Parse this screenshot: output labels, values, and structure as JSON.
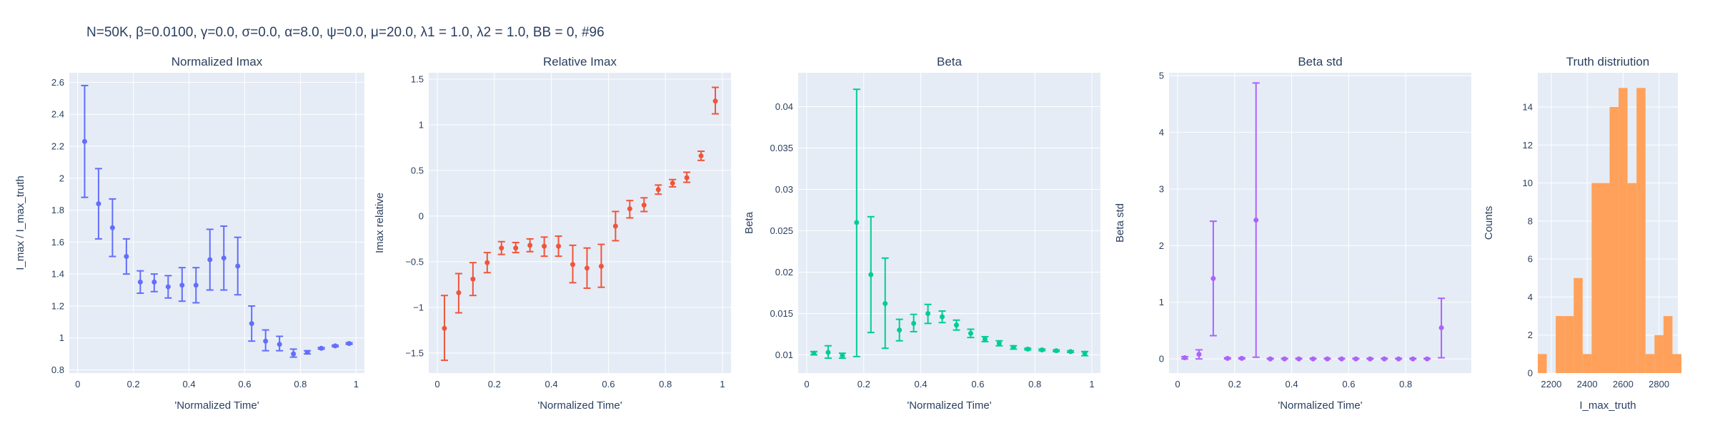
{
  "suptitle": "N=50K, β=0.0100, γ=0.0, σ=0.0,  α=8.0, ψ=0.0, μ=20.0, λ1 = 1.0, λ2 = 1.0, BB = 0, #96",
  "colors": {
    "plot_bg": "#e5ecf6",
    "grid": "#ffffff",
    "text": "#2a3f5f"
  },
  "chart_data": [
    {
      "type": "scatter",
      "title": "Normalized Imax",
      "xlabel": "'Normalized Time'",
      "ylabel": "I_max / I_max_truth",
      "color": "#636efa",
      "xlim": [
        -0.03,
        1.03
      ],
      "ylim": [
        0.78,
        2.66
      ],
      "xticks": [
        0,
        0.2,
        0.4,
        0.6,
        0.8,
        1
      ],
      "xtick_labels": [
        "0",
        "0.2",
        "0.4",
        "0.6",
        "0.8",
        "1"
      ],
      "yticks": [
        0.8,
        1,
        1.2,
        1.4,
        1.6,
        1.8,
        2,
        2.2,
        2.4,
        2.6
      ],
      "ytick_labels": [
        "0.8",
        "1",
        "1.2",
        "1.4",
        "1.6",
        "1.8",
        "2",
        "2.2",
        "2.4",
        "2.6"
      ],
      "points": [
        {
          "x": 0.025,
          "y": 2.23,
          "lo": 1.88,
          "hi": 2.58
        },
        {
          "x": 0.075,
          "y": 1.84,
          "lo": 1.62,
          "hi": 2.06
        },
        {
          "x": 0.125,
          "y": 1.69,
          "lo": 1.51,
          "hi": 1.87
        },
        {
          "x": 0.175,
          "y": 1.51,
          "lo": 1.4,
          "hi": 1.62
        },
        {
          "x": 0.225,
          "y": 1.35,
          "lo": 1.28,
          "hi": 1.42
        },
        {
          "x": 0.275,
          "y": 1.35,
          "lo": 1.29,
          "hi": 1.4
        },
        {
          "x": 0.325,
          "y": 1.32,
          "lo": 1.25,
          "hi": 1.39
        },
        {
          "x": 0.375,
          "y": 1.33,
          "lo": 1.23,
          "hi": 1.44
        },
        {
          "x": 0.425,
          "y": 1.33,
          "lo": 1.22,
          "hi": 1.44
        },
        {
          "x": 0.475,
          "y": 1.49,
          "lo": 1.3,
          "hi": 1.68
        },
        {
          "x": 0.525,
          "y": 1.5,
          "lo": 1.3,
          "hi": 1.7
        },
        {
          "x": 0.575,
          "y": 1.45,
          "lo": 1.27,
          "hi": 1.63
        },
        {
          "x": 0.625,
          "y": 1.09,
          "lo": 0.98,
          "hi": 1.2
        },
        {
          "x": 0.675,
          "y": 0.98,
          "lo": 0.92,
          "hi": 1.05
        },
        {
          "x": 0.725,
          "y": 0.96,
          "lo": 0.92,
          "hi": 1.01
        },
        {
          "x": 0.775,
          "y": 0.9,
          "lo": 0.88,
          "hi": 0.93
        },
        {
          "x": 0.825,
          "y": 0.91,
          "lo": 0.9,
          "hi": 0.92
        },
        {
          "x": 0.875,
          "y": 0.935,
          "lo": 0.93,
          "hi": 0.94
        },
        {
          "x": 0.925,
          "y": 0.95,
          "lo": 0.945,
          "hi": 0.955
        },
        {
          "x": 0.975,
          "y": 0.965,
          "lo": 0.96,
          "hi": 0.97
        }
      ]
    },
    {
      "type": "scatter",
      "title": "Relative Imax",
      "xlabel": "'Normalized Time'",
      "ylabel": "Imax relative",
      "color": "#ef553b",
      "xlim": [
        -0.03,
        1.03
      ],
      "ylim": [
        -1.72,
        1.57
      ],
      "xticks": [
        0,
        0.2,
        0.4,
        0.6,
        0.8,
        1
      ],
      "xtick_labels": [
        "0",
        "0.2",
        "0.4",
        "0.6",
        "0.8",
        "1"
      ],
      "yticks": [
        -1.5,
        -1,
        -0.5,
        0,
        0.5,
        1,
        1.5
      ],
      "ytick_labels": [
        "−1.5",
        "−1",
        "−0.5",
        "0",
        "0.5",
        "1",
        "1.5"
      ],
      "points": [
        {
          "x": 0.025,
          "y": -1.23,
          "lo": -1.58,
          "hi": -0.87
        },
        {
          "x": 0.075,
          "y": -0.84,
          "lo": -1.06,
          "hi": -0.63
        },
        {
          "x": 0.125,
          "y": -0.69,
          "lo": -0.87,
          "hi": -0.51
        },
        {
          "x": 0.175,
          "y": -0.51,
          "lo": -0.62,
          "hi": -0.4
        },
        {
          "x": 0.225,
          "y": -0.35,
          "lo": -0.42,
          "hi": -0.28
        },
        {
          "x": 0.275,
          "y": -0.35,
          "lo": -0.4,
          "hi": -0.29
        },
        {
          "x": 0.325,
          "y": -0.32,
          "lo": -0.39,
          "hi": -0.25
        },
        {
          "x": 0.375,
          "y": -0.33,
          "lo": -0.44,
          "hi": -0.23
        },
        {
          "x": 0.425,
          "y": -0.33,
          "lo": -0.44,
          "hi": -0.22
        },
        {
          "x": 0.475,
          "y": -0.53,
          "lo": -0.73,
          "hi": -0.32
        },
        {
          "x": 0.525,
          "y": -0.57,
          "lo": -0.79,
          "hi": -0.35
        },
        {
          "x": 0.575,
          "y": -0.55,
          "lo": -0.78,
          "hi": -0.31
        },
        {
          "x": 0.625,
          "y": -0.11,
          "lo": -0.27,
          "hi": 0.05
        },
        {
          "x": 0.675,
          "y": 0.08,
          "lo": -0.02,
          "hi": 0.17
        },
        {
          "x": 0.725,
          "y": 0.12,
          "lo": 0.05,
          "hi": 0.2
        },
        {
          "x": 0.775,
          "y": 0.29,
          "lo": 0.24,
          "hi": 0.34
        },
        {
          "x": 0.825,
          "y": 0.36,
          "lo": 0.32,
          "hi": 0.4
        },
        {
          "x": 0.875,
          "y": 0.42,
          "lo": 0.37,
          "hi": 0.48
        },
        {
          "x": 0.925,
          "y": 0.66,
          "lo": 0.61,
          "hi": 0.71
        },
        {
          "x": 0.975,
          "y": 1.26,
          "lo": 1.12,
          "hi": 1.41
        }
      ]
    },
    {
      "type": "scatter",
      "title": "Beta",
      "xlabel": "'Normalized Time'",
      "ylabel": "Beta",
      "color": "#00cc96",
      "xlim": [
        -0.03,
        1.03
      ],
      "ylim": [
        0.0078,
        0.0441
      ],
      "xticks": [
        0,
        0.2,
        0.4,
        0.6,
        0.8,
        1
      ],
      "xtick_labels": [
        "0",
        "0.2",
        "0.4",
        "0.6",
        "0.8",
        "1"
      ],
      "yticks": [
        0.01,
        0.015,
        0.02,
        0.025,
        0.03,
        0.035,
        0.04
      ],
      "ytick_labels": [
        "0.01",
        "0.015",
        "0.02",
        "0.025",
        "0.03",
        "0.035",
        "0.04"
      ],
      "points": [
        {
          "x": 0.025,
          "y": 0.0102,
          "lo": 0.01,
          "hi": 0.0104
        },
        {
          "x": 0.075,
          "y": 0.0103,
          "lo": 0.0096,
          "hi": 0.0111
        },
        {
          "x": 0.125,
          "y": 0.0099,
          "lo": 0.0096,
          "hi": 0.0102
        },
        {
          "x": 0.175,
          "y": 0.026,
          "lo": 0.0098,
          "hi": 0.0421
        },
        {
          "x": 0.225,
          "y": 0.0197,
          "lo": 0.0127,
          "hi": 0.0267
        },
        {
          "x": 0.275,
          "y": 0.0162,
          "lo": 0.0108,
          "hi": 0.0217
        },
        {
          "x": 0.325,
          "y": 0.013,
          "lo": 0.0117,
          "hi": 0.0143
        },
        {
          "x": 0.375,
          "y": 0.0138,
          "lo": 0.0128,
          "hi": 0.0149
        },
        {
          "x": 0.425,
          "y": 0.015,
          "lo": 0.0138,
          "hi": 0.0161
        },
        {
          "x": 0.475,
          "y": 0.0146,
          "lo": 0.0139,
          "hi": 0.0153
        },
        {
          "x": 0.525,
          "y": 0.0136,
          "lo": 0.013,
          "hi": 0.0142
        },
        {
          "x": 0.575,
          "y": 0.0126,
          "lo": 0.0121,
          "hi": 0.0131
        },
        {
          "x": 0.625,
          "y": 0.0119,
          "lo": 0.0116,
          "hi": 0.0122
        },
        {
          "x": 0.675,
          "y": 0.0114,
          "lo": 0.0111,
          "hi": 0.0117
        },
        {
          "x": 0.725,
          "y": 0.0109,
          "lo": 0.0107,
          "hi": 0.0111
        },
        {
          "x": 0.775,
          "y": 0.0107,
          "lo": 0.0106,
          "hi": 0.0108
        },
        {
          "x": 0.825,
          "y": 0.0106,
          "lo": 0.0105,
          "hi": 0.0107
        },
        {
          "x": 0.875,
          "y": 0.0105,
          "lo": 0.0104,
          "hi": 0.0106
        },
        {
          "x": 0.925,
          "y": 0.0104,
          "lo": 0.0103,
          "hi": 0.0105
        },
        {
          "x": 0.975,
          "y": 0.0102,
          "lo": 0.0099,
          "hi": 0.0104
        }
      ]
    },
    {
      "type": "scatter",
      "title": "Beta std",
      "xlabel": "'Normalized Time'",
      "ylabel": "Beta std",
      "color": "#ab63fa",
      "xlim": [
        -0.03,
        1.03
      ],
      "ylim": [
        -0.25,
        5.05
      ],
      "xticks": [
        0,
        0.2,
        0.4,
        0.6,
        0.8
      ],
      "xtick_labels": [
        "0",
        "0.2",
        "0.4",
        "0.6",
        "0.8"
      ],
      "yticks": [
        0,
        1,
        2,
        3,
        4,
        5
      ],
      "ytick_labels": [
        "0",
        "1",
        "2",
        "3",
        "4",
        "5"
      ],
      "points": [
        {
          "x": 0.025,
          "y": 0.02,
          "lo": 0.0,
          "hi": 0.04
        },
        {
          "x": 0.075,
          "y": 0.08,
          "lo": 0.0,
          "hi": 0.16
        },
        {
          "x": 0.125,
          "y": 1.42,
          "lo": 0.41,
          "hi": 2.43
        },
        {
          "x": 0.175,
          "y": 0.01,
          "lo": 0.0,
          "hi": 0.02
        },
        {
          "x": 0.225,
          "y": 0.01,
          "lo": 0.0,
          "hi": 0.02
        },
        {
          "x": 0.275,
          "y": 2.45,
          "lo": 0.03,
          "hi": 4.87
        },
        {
          "x": 0.325,
          "y": 0.0,
          "lo": 0.0,
          "hi": 0.01
        },
        {
          "x": 0.375,
          "y": 0.0,
          "lo": 0.0,
          "hi": 0.01
        },
        {
          "x": 0.425,
          "y": 0.0,
          "lo": 0.0,
          "hi": 0.01
        },
        {
          "x": 0.475,
          "y": 0.0,
          "lo": 0.0,
          "hi": 0.01
        },
        {
          "x": 0.525,
          "y": 0.0,
          "lo": 0.0,
          "hi": 0.01
        },
        {
          "x": 0.575,
          "y": 0.0,
          "lo": 0.0,
          "hi": 0.01
        },
        {
          "x": 0.625,
          "y": 0.0,
          "lo": 0.0,
          "hi": 0.01
        },
        {
          "x": 0.675,
          "y": 0.0,
          "lo": 0.0,
          "hi": 0.01
        },
        {
          "x": 0.725,
          "y": 0.0,
          "lo": 0.0,
          "hi": 0.01
        },
        {
          "x": 0.775,
          "y": 0.0,
          "lo": 0.0,
          "hi": 0.01
        },
        {
          "x": 0.825,
          "y": 0.0,
          "lo": 0.0,
          "hi": 0.01
        },
        {
          "x": 0.875,
          "y": 0.0,
          "lo": 0.0,
          "hi": 0.01
        },
        {
          "x": 0.925,
          "y": 0.55,
          "lo": 0.02,
          "hi": 1.07
        }
      ]
    },
    {
      "type": "bar",
      "title": "Truth distriution",
      "xlabel": "I_max_truth",
      "ylabel": "Counts",
      "color": "#ffa15a",
      "xlim": [
        2125,
        2905
      ],
      "ylim": [
        0,
        15.8
      ],
      "xticks": [
        2200,
        2400,
        2600,
        2800
      ],
      "xtick_labels": [
        "2200",
        "2400",
        "2600",
        "2800"
      ],
      "yticks": [
        0,
        2,
        4,
        6,
        8,
        10,
        12,
        14
      ],
      "ytick_labels": [
        "0",
        "2",
        "4",
        "6",
        "8",
        "10",
        "12",
        "14"
      ],
      "bin_start": 2125,
      "bin_width": 50,
      "values": [
        1,
        0,
        3,
        3,
        5,
        1,
        10,
        10,
        14,
        15,
        10,
        15,
        1,
        2,
        3,
        1
      ]
    }
  ]
}
